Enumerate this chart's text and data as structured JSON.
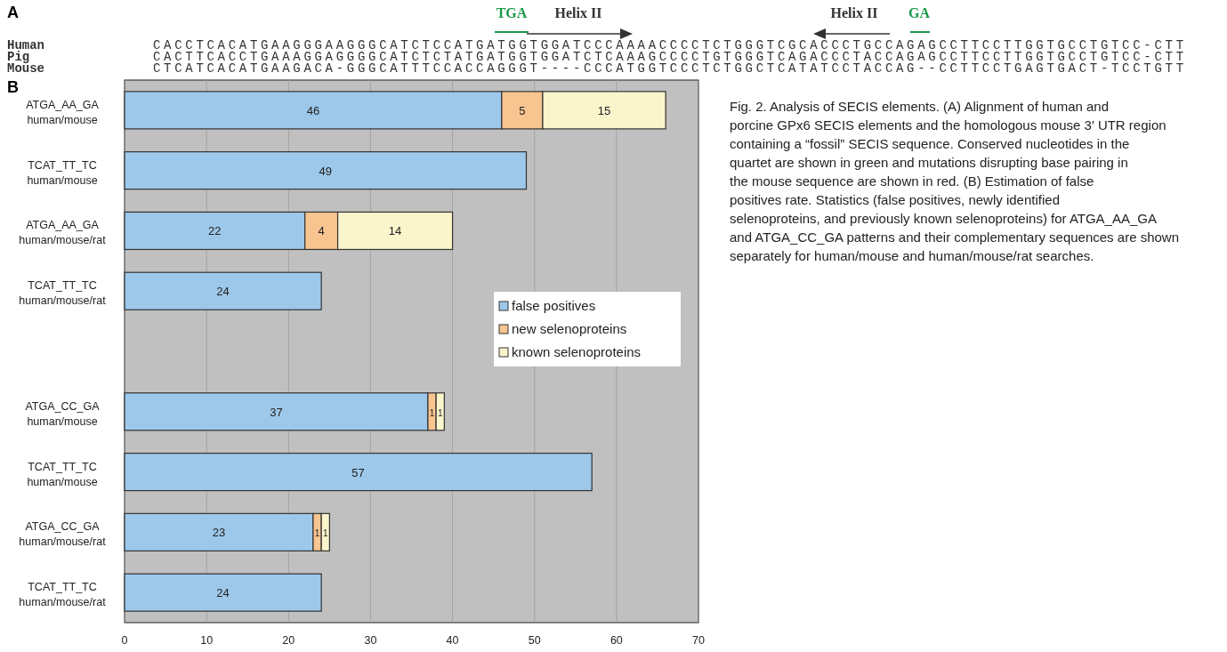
{
  "chart_data": [
    {
      "type": "other",
      "title": "A",
      "annotations": [
        "TGA",
        "Helix II",
        "Helix II",
        "GA",
        "Human",
        "Pig",
        "Mouse",
        "CACCTCACATGAAGGGAAGGGCATCTCCATGATGGTGGATCCCAAAACCCCTCTGGGTCGCACCCTGCCAGAGCCTTCCTTGGTGCCTGTCC-CTT",
        "CACTTCACCTGAAAGGAGGGGCATCTCTATGATGGTGGATCTCAAAGCCCCTGTGGGTCAGACCCTACCAGAGCCTTCCTTGGTGCCTGTCC-CTT",
        "CTCATCACATGAAGACA-GGGCATTTCCACCAGGGT----CCCATGGTCCCTCTGGCTCATATCCTACCAG--CCTTCCTGAGTGACT-TCCTGTT"
      ]
    },
    {
      "type": "bar",
      "orientation": "horizontal",
      "stacked": true,
      "title": "B",
      "categories": [
        "ATGA_AA_GA\nhuman/mouse",
        "TCAT_TT_TC\nhuman/mouse",
        "ATGA_AA_GA\nhuman/mouse/rat",
        "TCAT_TT_TC\nhuman/mouse/rat",
        null,
        "ATGA_CC_GA\nhuman/mouse",
        "TCAT_TT_TC\nhuman/mouse",
        "ATGA_CC_GA\nhuman/mouse/rat",
        "TCAT_TT_TC\nhuman/mouse/rat"
      ],
      "series": [
        {
          "name": "false positives",
          "color": "#9dc8ea",
          "values": [
            46,
            49,
            22,
            24,
            null,
            37,
            57,
            23,
            24
          ]
        },
        {
          "name": "new selenoproteins",
          "color": "#f8c490",
          "values": [
            5,
            null,
            4,
            null,
            null,
            1,
            null,
            1,
            null
          ]
        },
        {
          "name": "known selenoproteins",
          "color": "#fbf5cc",
          "values": [
            15,
            null,
            14,
            null,
            null,
            1,
            null,
            1,
            null
          ]
        }
      ],
      "xlim": [
        0,
        70
      ],
      "xticks": [
        0,
        10,
        20,
        30,
        40,
        50,
        60,
        70
      ],
      "grid": "x",
      "legend": "right",
      "data_labels": true,
      "annotations": [
        "Fig. 2. Analysis of SECIS elements. (A) Alignment of human and porcine GPx6 SECIS elements and the homologous mouse 3′ UTR region containing a “fossil” SECIS sequence. Conserved nucleotides in the quartet are shown in green and mutations disrupting base pairing in the mouse sequence are shown in red. (B) Estimation of false positives rate. Statistics (false positives, newly identified selenoproteins, and previously known selenoproteins) for ATGA_AA_GA and ATGA_CC_GA patterns and their complementary sequences are shown separately for human/mouse and human/mouse/rat searches."
      ]
    }
  ]
}
